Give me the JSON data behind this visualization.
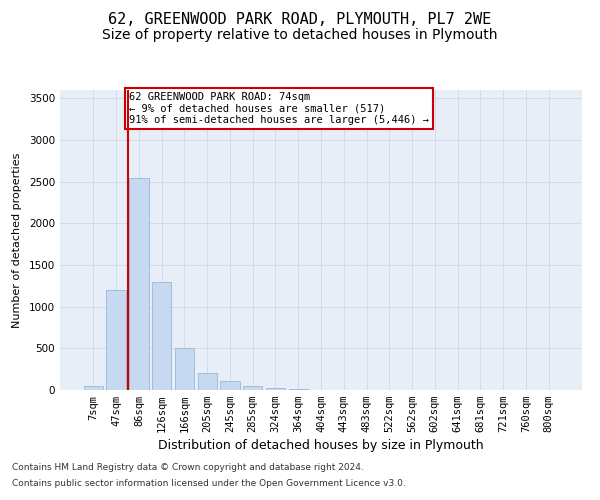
{
  "title1": "62, GREENWOOD PARK ROAD, PLYMOUTH, PL7 2WE",
  "title2": "Size of property relative to detached houses in Plymouth",
  "xlabel": "Distribution of detached houses by size in Plymouth",
  "ylabel": "Number of detached properties",
  "categories": [
    "7sqm",
    "47sqm",
    "86sqm",
    "126sqm",
    "166sqm",
    "205sqm",
    "245sqm",
    "285sqm",
    "324sqm",
    "364sqm",
    "404sqm",
    "443sqm",
    "483sqm",
    "522sqm",
    "562sqm",
    "602sqm",
    "641sqm",
    "681sqm",
    "721sqm",
    "760sqm",
    "800sqm"
  ],
  "values": [
    50,
    1200,
    2550,
    1300,
    500,
    200,
    110,
    50,
    30,
    15,
    5,
    2,
    2,
    0,
    0,
    0,
    0,
    0,
    0,
    0,
    0
  ],
  "bar_color": "#c6d9f0",
  "bar_edge_color": "#8ab0d0",
  "vline_x_index": 1.5,
  "vline_color": "#cc0000",
  "annotation_text": "62 GREENWOOD PARK ROAD: 74sqm\n← 9% of detached houses are smaller (517)\n91% of semi-detached houses are larger (5,446) →",
  "annotation_box_color": "#ffffff",
  "annotation_box_edge": "#cc0000",
  "ylim": [
    0,
    3600
  ],
  "yticks": [
    0,
    500,
    1000,
    1500,
    2000,
    2500,
    3000,
    3500
  ],
  "grid_color": "#d0d8e8",
  "bg_color": "#e8eef8",
  "footer1": "Contains HM Land Registry data © Crown copyright and database right 2024.",
  "footer2": "Contains public sector information licensed under the Open Government Licence v3.0.",
  "title1_fontsize": 11,
  "title2_fontsize": 10,
  "xlabel_fontsize": 9,
  "ylabel_fontsize": 8,
  "tick_fontsize": 7.5,
  "annotation_fontsize": 7.5,
  "footer_fontsize": 6.5
}
